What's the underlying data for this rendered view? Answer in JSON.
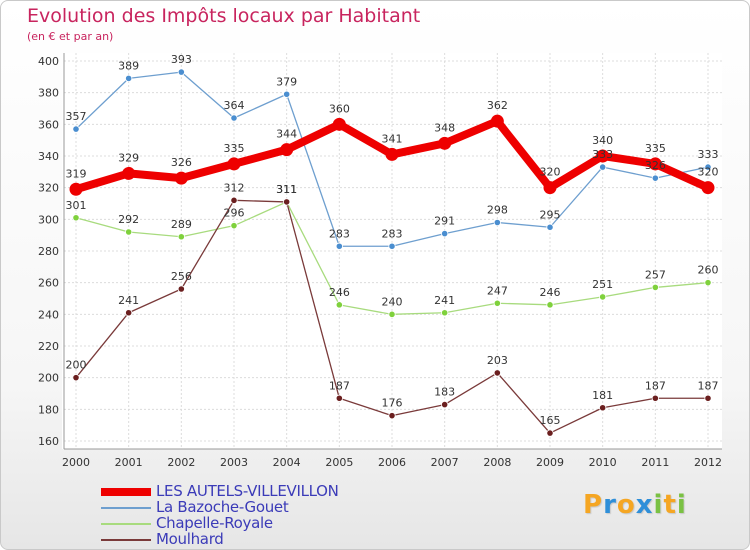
{
  "header": {
    "title": "Evolution des Impôts locaux par Habitant",
    "subtitle": "(en € et par an)"
  },
  "chart_data": {
    "type": "line",
    "x": [
      "2000",
      "2001",
      "2002",
      "2003",
      "2004",
      "2005",
      "2006",
      "2007",
      "2008",
      "2009",
      "2010",
      "2011",
      "2012"
    ],
    "ylim": [
      160,
      400
    ],
    "yticks": [
      160,
      180,
      200,
      220,
      240,
      260,
      280,
      300,
      320,
      340,
      360,
      380,
      400
    ],
    "grid": true,
    "legend_position": "bottom-left",
    "series": [
      {
        "name": "LES AUTELS-VILLEVILLON",
        "color": "#ee0000",
        "width": 8,
        "marker_r": 6.5,
        "values": [
          319,
          329,
          326,
          335,
          344,
          360,
          341,
          348,
          362,
          320,
          340,
          335,
          320
        ]
      },
      {
        "name": "La Bazoche-Gouet",
        "color": "#6e9fcf",
        "width": 1.3,
        "marker": "#4a8ed0",
        "marker_r": 3.2,
        "values": [
          357,
          389,
          393,
          364,
          379,
          283,
          283,
          291,
          298,
          295,
          333,
          326,
          333
        ]
      },
      {
        "name": "Chapelle-Royale",
        "color": "#a8db7e",
        "width": 1.3,
        "marker": "#7fd13c",
        "marker_r": 3.2,
        "values": [
          301,
          292,
          289,
          296,
          311,
          246,
          240,
          241,
          247,
          246,
          251,
          257,
          260
        ]
      },
      {
        "name": "Moulhard",
        "color": "#7a3a3a",
        "width": 1.3,
        "marker": "#6b1f1f",
        "marker_r": 3.2,
        "values": [
          200,
          241,
          256,
          312,
          311,
          187,
          176,
          183,
          203,
          165,
          181,
          187,
          187
        ]
      }
    ],
    "labels": {
      "LES AUTELS-VILLEVILLON": [
        "319",
        "329",
        "326",
        "335",
        "344",
        "360",
        "341",
        "348",
        "362",
        "320",
        "340",
        "335",
        "320"
      ],
      "La Bazoche-Gouet": [
        "357",
        "389",
        "393",
        "364",
        "379",
        "283",
        "283",
        "291",
        "298",
        "295",
        "333",
        "326",
        "333"
      ],
      "Chapelle-Royale": [
        "301",
        "292",
        "289",
        "296",
        "311",
        "246",
        "240",
        "241",
        "247",
        "246",
        "251",
        "257",
        "260"
      ],
      "Moulhard": [
        "200",
        "241",
        "256",
        "312",
        "311",
        "187",
        "176",
        "183",
        "203",
        "165",
        "181",
        "187",
        "187"
      ]
    }
  },
  "logo": {
    "letters": [
      "P",
      "r",
      "o",
      "x",
      "i",
      "t",
      "i"
    ],
    "colors": [
      "#f5a623",
      "#2f8fd9",
      "#f5a623",
      "#2f8fd9",
      "#7ac143",
      "#f5a623",
      "#7ac143"
    ]
  }
}
